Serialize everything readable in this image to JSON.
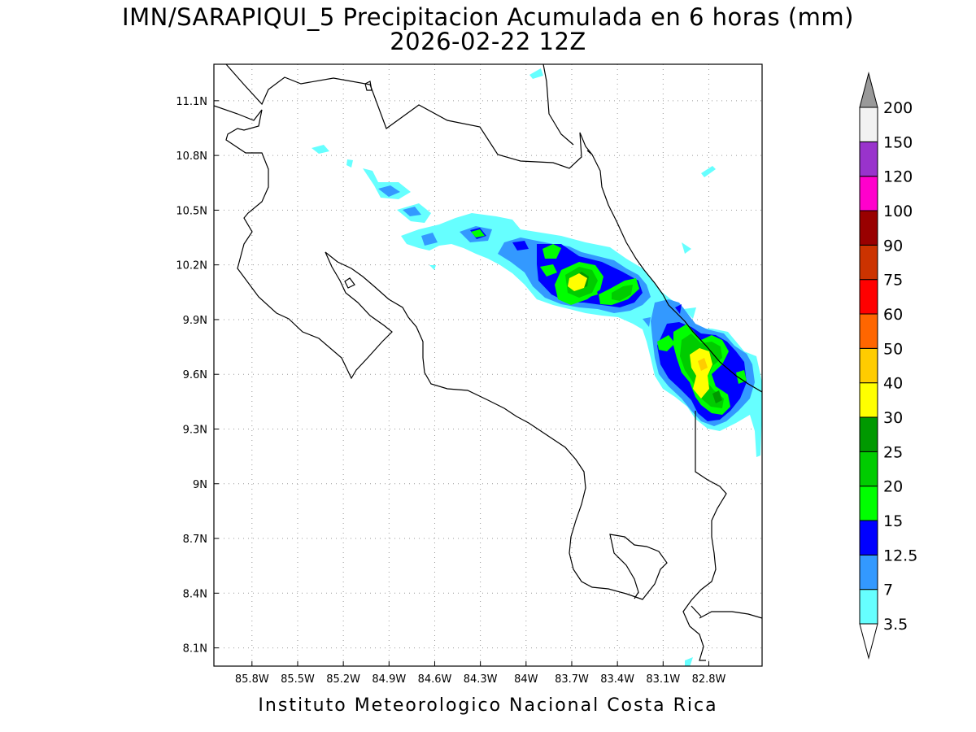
{
  "title": {
    "line1": "IMN/SARAPIQUI_5 Precipitacion Acumulada en 6 horas (mm)",
    "line2": "2026-02-22 12Z"
  },
  "footer": "Instituto Meteorologico Nacional Costa Rica",
  "map": {
    "lon_range": [
      -86.05,
      -82.45
    ],
    "lat_range": [
      8.0,
      11.3
    ],
    "lon_ticks": [
      "85.8W",
      "85.5W",
      "85.2W",
      "84.9W",
      "84.6W",
      "84.3W",
      "84W",
      "83.7W",
      "83.4W",
      "83.1W",
      "82.8W"
    ],
    "lat_ticks": [
      "11.1N",
      "10.8N",
      "10.5N",
      "10.2N",
      "9.9N",
      "9.6N",
      "9.3N",
      "9N",
      "8.7N",
      "8.4N",
      "8.1N"
    ],
    "grid": "dotted",
    "coastline_color": "#000000"
  },
  "colorbar": {
    "labels": [
      "3.5",
      "7",
      "12.5",
      "15",
      "20",
      "25",
      "30",
      "40",
      "50",
      "60",
      "75",
      "90",
      "100",
      "120",
      "150",
      "200"
    ],
    "colors": [
      "#ffffff",
      "#66ffff",
      "#3399ff",
      "#0000ff",
      "#00ff00",
      "#00cc00",
      "#009900",
      "#ffff00",
      "#ffcc00",
      "#ff6600",
      "#ff0000",
      "#cc3300",
      "#990000",
      "#ff00cc",
      "#9933cc",
      "#f2f2f2",
      "#999999"
    ]
  }
}
